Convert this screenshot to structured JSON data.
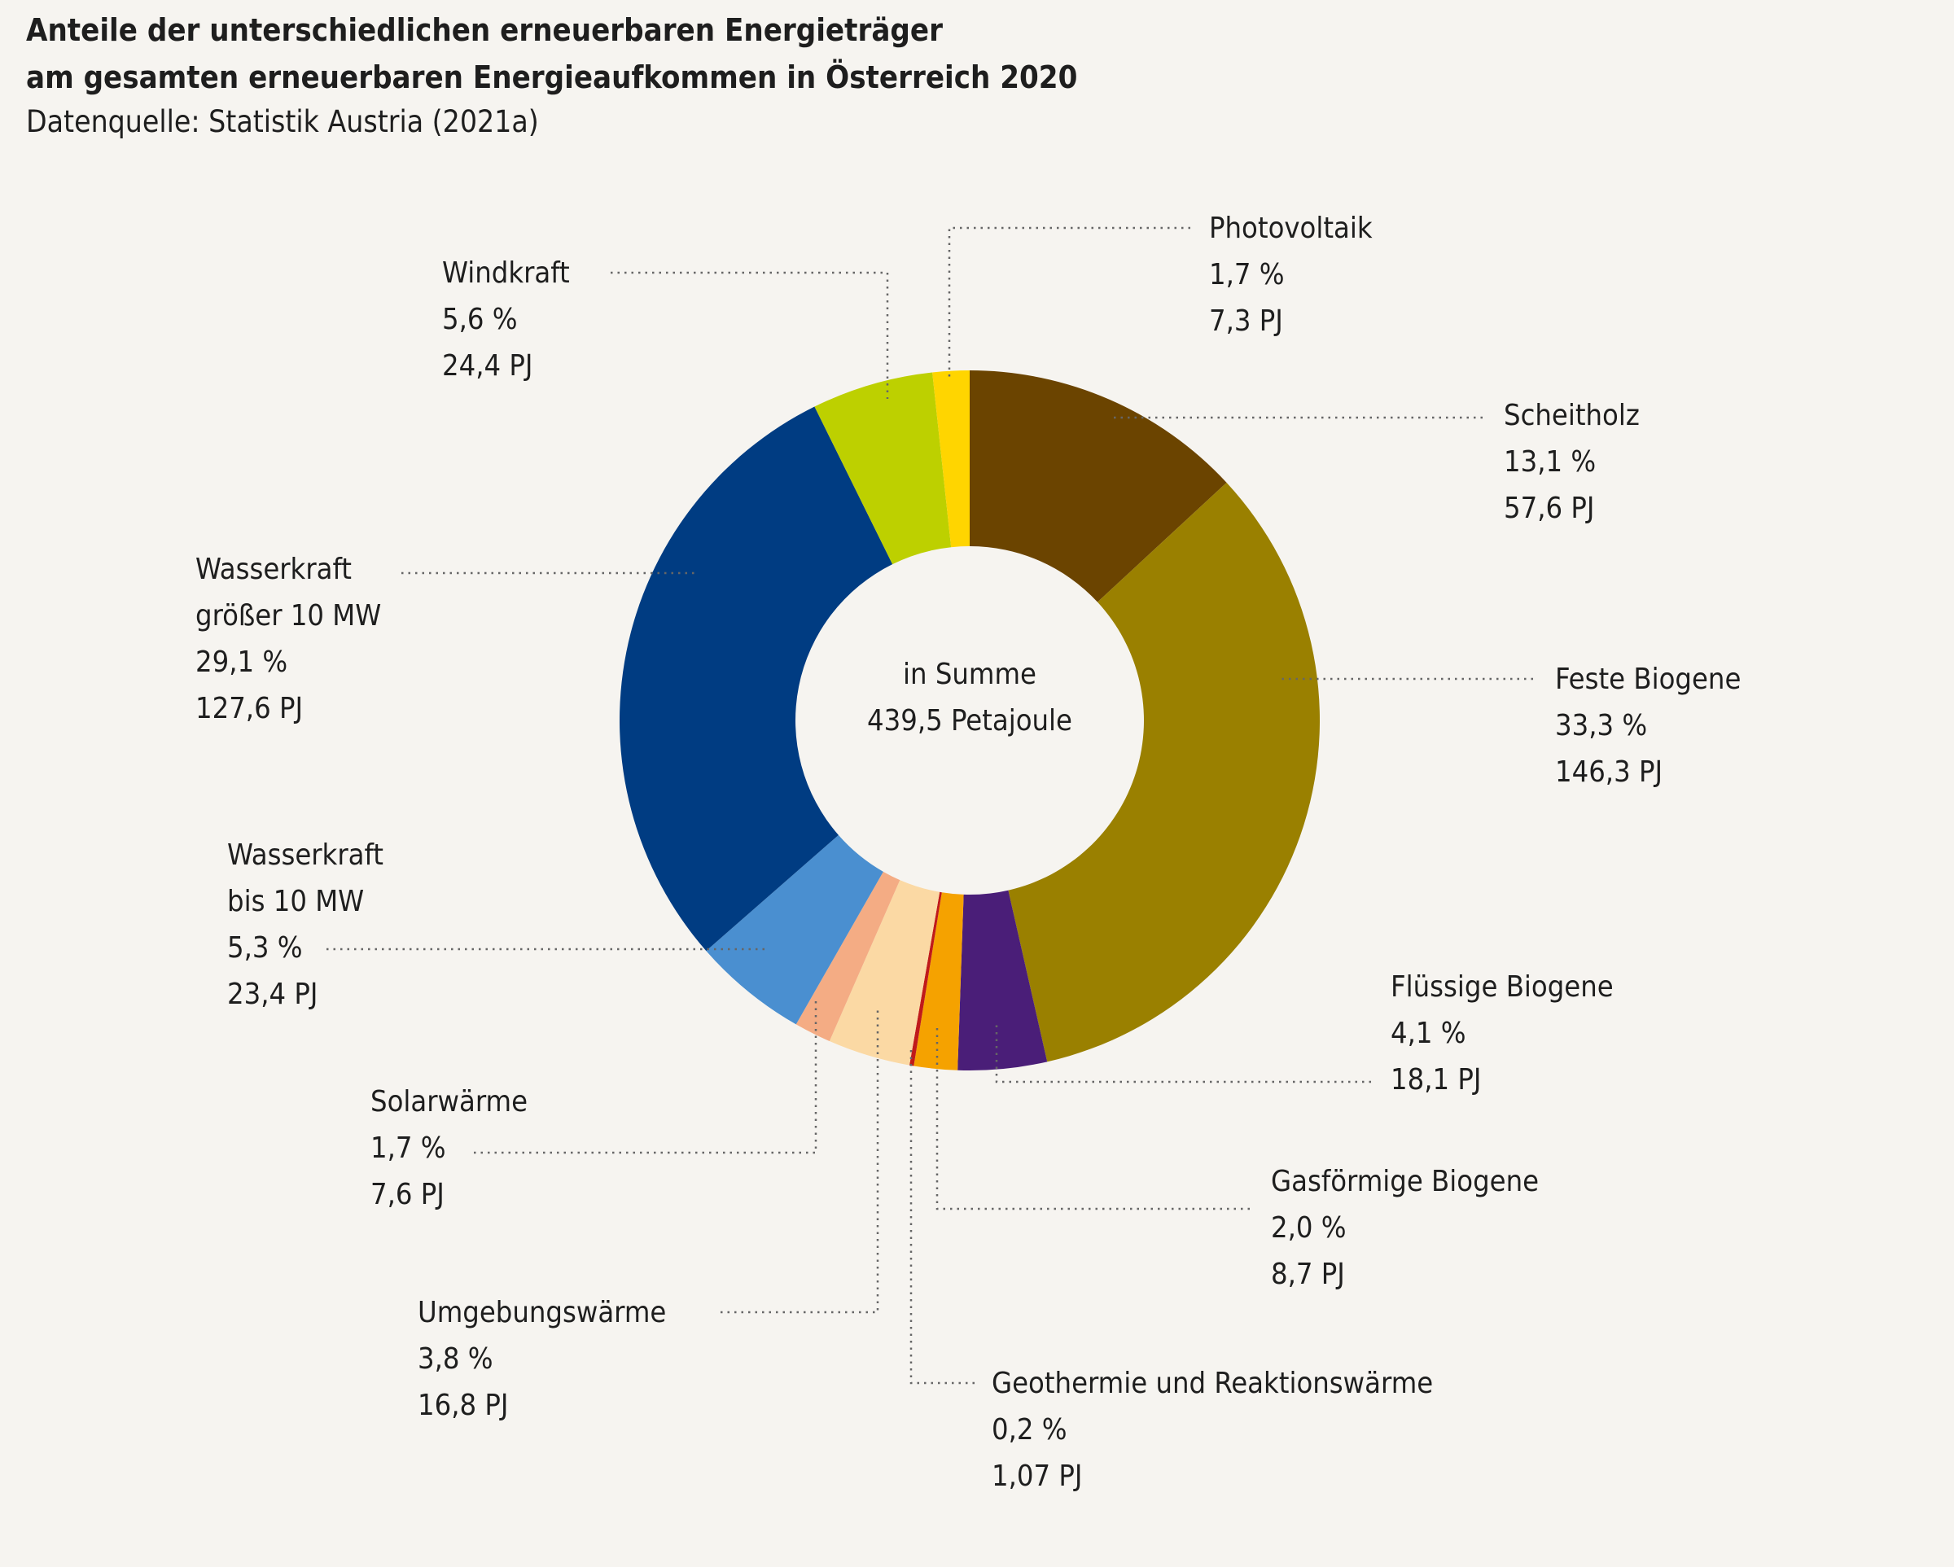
{
  "chart_data": {
    "type": "pie",
    "donut": true,
    "title": [
      "Anteile der unterschiedlichen erneuerbaren Energieträger",
      "am gesamten erneuerbaren Energieaufkommen in Österreich 2020"
    ],
    "subtitle": "Datenquelle: Statistik Austria (2021a)",
    "center_label": [
      "in Summe",
      "439,5 Petajoule"
    ],
    "slices": [
      {
        "name": "Scheitholz",
        "percent": 13.1,
        "percent_label": "13,1 %",
        "value_label": "57,6 PJ",
        "value": 57.6,
        "color": "#6b4400"
      },
      {
        "name": "Feste Biogene",
        "percent": 33.3,
        "percent_label": "33,3 %",
        "value_label": "146,3 PJ",
        "value": 146.3,
        "color": "#9a8000"
      },
      {
        "name": "Flüssige Biogene",
        "percent": 4.1,
        "percent_label": "4,1 %",
        "value_label": "18,1 PJ",
        "value": 18.1,
        "color": "#4a1e78"
      },
      {
        "name": "Gasförmige Biogene",
        "percent": 2.0,
        "percent_label": "2,0 %",
        "value_label": "8,7 PJ",
        "value": 8.7,
        "color": "#f5a200"
      },
      {
        "name": "Geothermie und Reaktionswärme",
        "percent": 0.2,
        "percent_label": "0,2 %",
        "value_label": "1,07 PJ",
        "value": 1.07,
        "color": "#c01a1a"
      },
      {
        "name": "Umgebungswärme",
        "percent": 3.8,
        "percent_label": "3,8 %",
        "value_label": "16,8 PJ",
        "value": 16.8,
        "color": "#fbd9a4"
      },
      {
        "name": "Solarwärme",
        "percent": 1.7,
        "percent_label": "1,7 %",
        "value_label": "7,6 PJ",
        "value": 7.6,
        "color": "#f4ac84"
      },
      {
        "name": [
          "Wasserkraft",
          "bis 10 MW"
        ],
        "percent": 5.3,
        "percent_label": "5,3 %",
        "value_label": "23,4 PJ",
        "value": 23.4,
        "color": "#4a8fd0"
      },
      {
        "name": [
          "Wasserkraft",
          "größer 10 MW"
        ],
        "percent": 29.1,
        "percent_label": "29,1 %",
        "value_label": "127,6 PJ",
        "value": 127.6,
        "color": "#003c82"
      },
      {
        "name": "Windkraft",
        "percent": 5.6,
        "percent_label": "5,6 %",
        "value_label": "24,4 PJ",
        "value": 24.4,
        "color": "#bdd000"
      },
      {
        "name": "Photovoltaik",
        "percent": 1.7,
        "percent_label": "1,7 %",
        "value_label": "7,3 PJ",
        "value": 7.3,
        "color": "#ffd500"
      }
    ]
  }
}
